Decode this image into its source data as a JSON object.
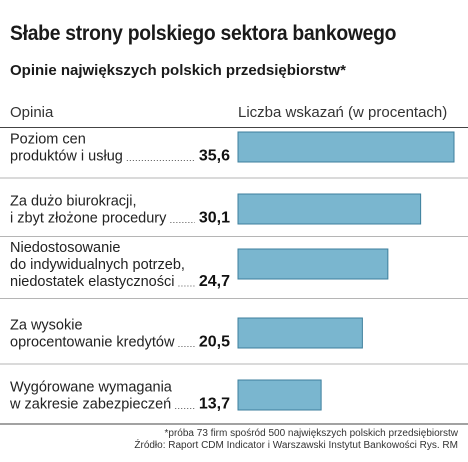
{
  "header": {
    "title": "Słabe strony polskiego sektora bankowego",
    "subtitle": "Opinie największych polskich przedsiębiorstw*",
    "col_left": "Opinia",
    "col_right": "Liczba wskazań (w procentach)"
  },
  "chart_data": {
    "type": "bar",
    "orientation": "horizontal",
    "title": "Słabe strony polskiego sektora bankowego",
    "subtitle": "Opinie największych polskich przedsiębiorstw*",
    "xlabel": "Liczba wskazań (w procentach)",
    "ylabel": "Opinia",
    "categories": [
      [
        "Poziom cen",
        "produktów i usług"
      ],
      [
        "Za dużo biurokracji,",
        "i zbyt złożone procedury"
      ],
      [
        "Niedostosowanie",
        "do indywidualnych potrzeb,",
        "niedostatek elastyczności"
      ],
      [
        "Za wysokie",
        "oprocentowanie kredytów"
      ],
      [
        "Wygórowane wymagania",
        "w zakresie zabezpieczeń"
      ]
    ],
    "values": [
      35.6,
      30.1,
      24.7,
      20.5,
      13.7
    ],
    "value_labels": [
      "35,6",
      "30,1",
      "24,7",
      "20,5",
      "13,7"
    ],
    "bar_color": "#7ab6cf",
    "bar_border": "#3d7f9c",
    "grid": false,
    "legend": "none"
  },
  "footer": {
    "note": "*próba 73 firm spośród 500 największych polskich przedsiębiorstw",
    "source": "Źródło: Raport CDM Indicator i Warszawski Instytut Bankowości",
    "credit": "Rys. RM"
  }
}
